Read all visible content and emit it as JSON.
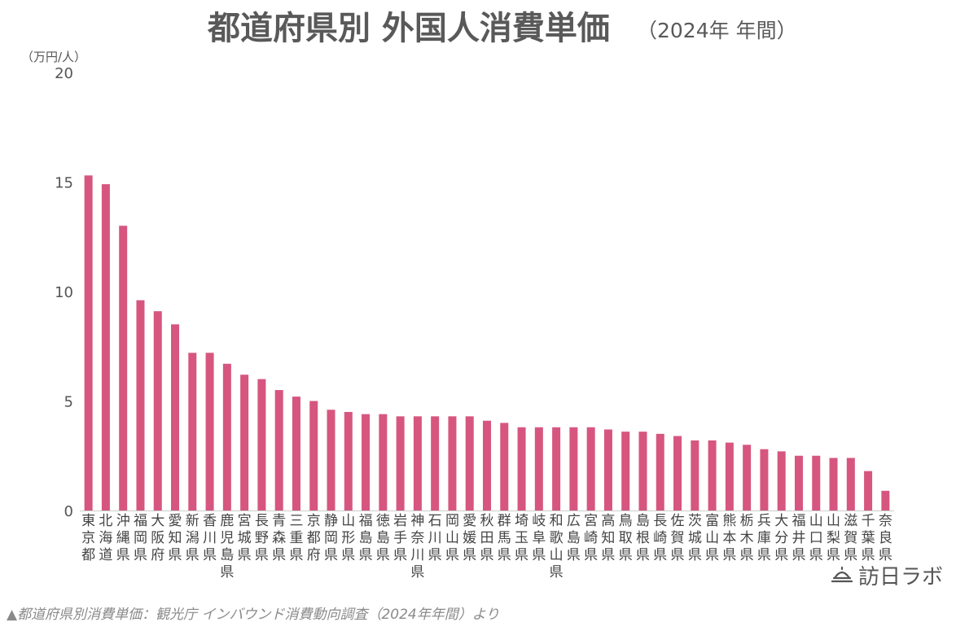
{
  "chart_data": {
    "type": "bar",
    "title": "都道府県別 外国人消費単価",
    "subtitle": "（2024年 年間）",
    "ylabel": "（万円/人）",
    "xlabel": "",
    "ylim": [
      0,
      20
    ],
    "yticks": [
      "0",
      "5",
      "10",
      "15",
      "20"
    ],
    "grid": false,
    "legend": "none",
    "bar_color": "#d6567f",
    "categories": [
      "東京都",
      "北海道",
      "沖縄県",
      "福岡県",
      "大阪府",
      "愛知県",
      "新潟県",
      "香川県",
      "鹿児島県",
      "宮城県",
      "長野県",
      "青森県",
      "三重県",
      "京都府",
      "静岡県",
      "山形県",
      "福島県",
      "徳島県",
      "岩手県",
      "神奈川県",
      "石川県",
      "岡山県",
      "愛媛県",
      "秋田県",
      "群馬県",
      "埼玉県",
      "岐阜県",
      "和歌山県",
      "広島県",
      "宮崎県",
      "高知県",
      "鳥取県",
      "島根県",
      "長崎県",
      "佐賀県",
      "茨城県",
      "富山県",
      "熊本県",
      "栃木県",
      "兵庫県",
      "大分県",
      "福井県",
      "山口県",
      "山梨県",
      "滋賀県",
      "千葉県",
      "奈良県"
    ],
    "values": [
      15.3,
      14.9,
      13.0,
      9.6,
      9.1,
      8.5,
      7.2,
      7.2,
      6.7,
      6.2,
      6.0,
      5.5,
      5.2,
      5.0,
      4.6,
      4.5,
      4.4,
      4.4,
      4.3,
      4.3,
      4.3,
      4.3,
      4.3,
      4.1,
      4.0,
      3.8,
      3.8,
      3.8,
      3.8,
      3.8,
      3.7,
      3.6,
      3.6,
      3.5,
      3.4,
      3.2,
      3.2,
      3.1,
      3.0,
      2.8,
      2.7,
      2.5,
      2.5,
      2.4,
      2.4,
      1.8,
      0.9
    ]
  },
  "source_note": "▲都道府県別消費単価：観光庁 インバウンド消費動向調査（2024年年間）より",
  "logo": {
    "text": "訪日ラボ",
    "icon": "dome-icon"
  }
}
